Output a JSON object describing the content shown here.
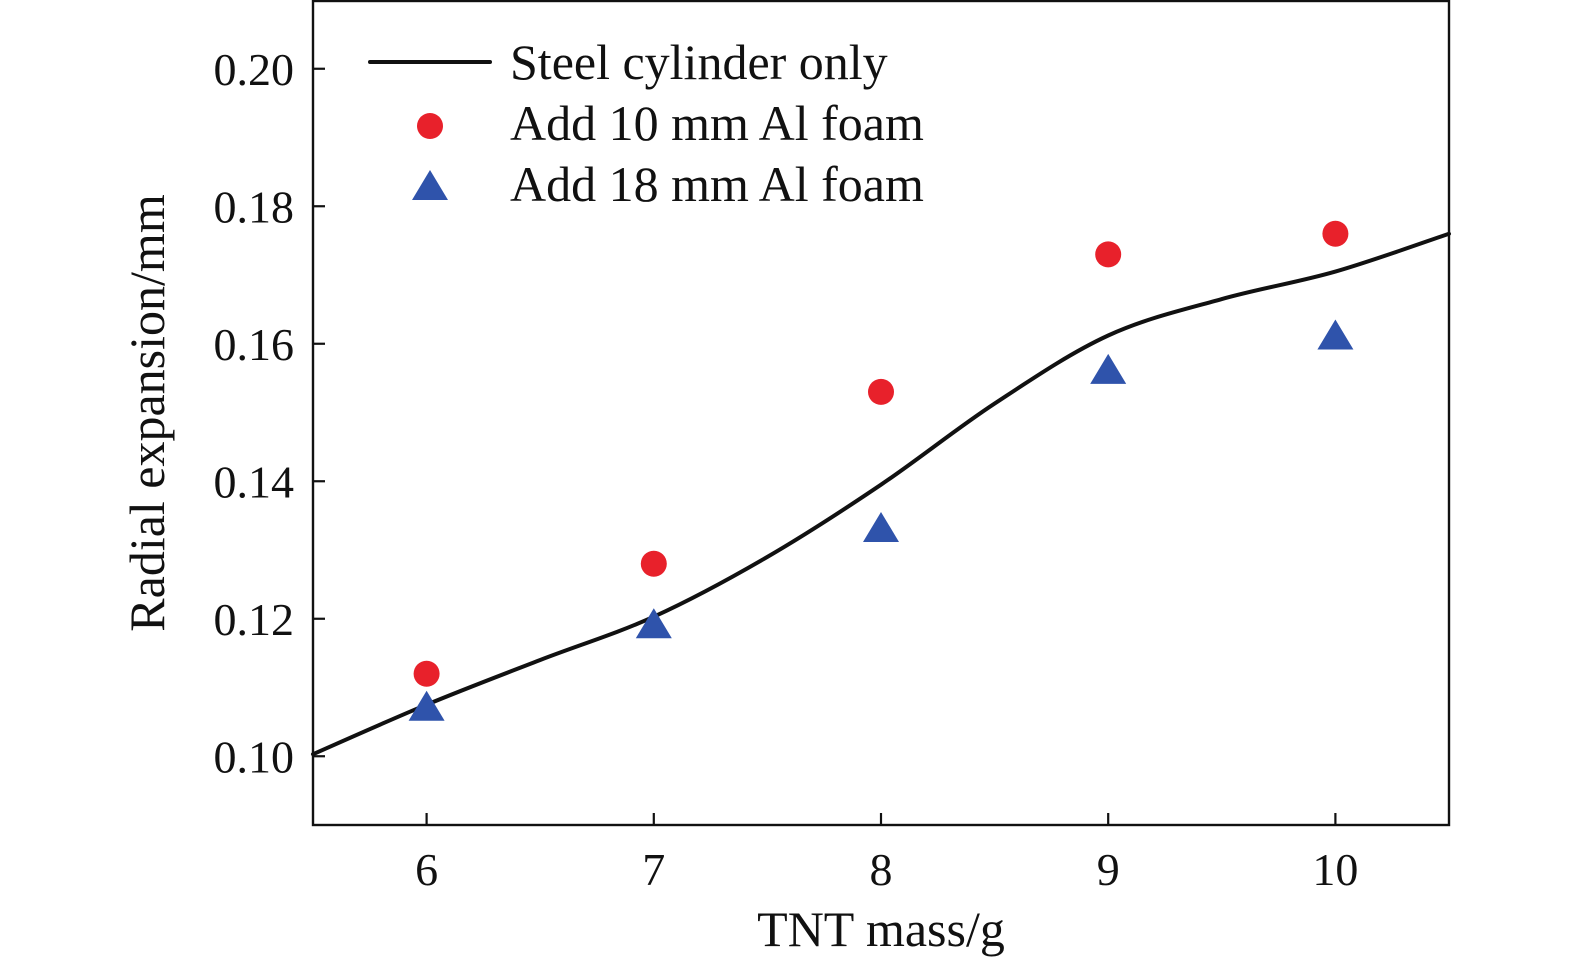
{
  "chart_data": {
    "type": "line",
    "xlabel": "TNT mass/g",
    "ylabel": "Radial expansion/mm",
    "xlim": [
      5.5,
      10.5
    ],
    "ylim": [
      0.09,
      0.21
    ],
    "xticks": [
      6,
      7,
      8,
      9,
      10
    ],
    "xtick_labels": [
      "6",
      "7",
      "8",
      "9",
      "10"
    ],
    "yticks": [
      0.1,
      0.12,
      0.14,
      0.16,
      0.18,
      0.2
    ],
    "ytick_labels": [
      "0.10",
      "0.12",
      "0.14",
      "0.16",
      "0.18",
      "0.20"
    ],
    "grid": false,
    "legend_position": "top-left",
    "series": [
      {
        "name": "Steel cylinder only",
        "kind": "line",
        "color": "#111111",
        "points": [
          [
            5.5,
            0.1003
          ],
          [
            6.0,
            0.1075
          ],
          [
            6.5,
            0.114
          ],
          [
            7.0,
            0.1203
          ],
          [
            7.5,
            0.129
          ],
          [
            8.0,
            0.1395
          ],
          [
            8.5,
            0.1513
          ],
          [
            9.0,
            0.1612
          ],
          [
            9.5,
            0.1665
          ],
          [
            10.0,
            0.1705
          ],
          [
            10.5,
            0.176
          ]
        ]
      },
      {
        "name": "Add 10 mm Al foam",
        "kind": "scatter",
        "marker": "circle",
        "color": "#e8212b",
        "points": [
          [
            6,
            0.112
          ],
          [
            7,
            0.128
          ],
          [
            8,
            0.153
          ],
          [
            9,
            0.173
          ],
          [
            10,
            0.176
          ]
        ]
      },
      {
        "name": "Add 18 mm Al foam",
        "kind": "scatter",
        "marker": "triangle",
        "color": "#2f53ab",
        "points": [
          [
            6,
            0.107
          ],
          [
            7,
            0.119
          ],
          [
            8,
            0.133
          ],
          [
            9,
            0.156
          ],
          [
            10,
            0.161
          ]
        ]
      }
    ]
  }
}
